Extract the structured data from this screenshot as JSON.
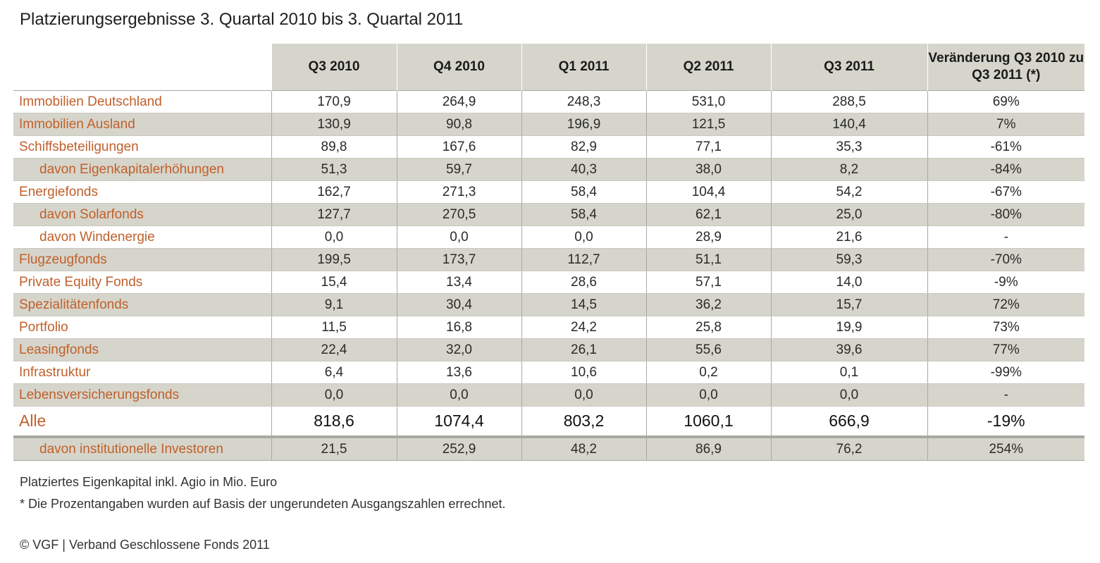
{
  "title": "Platzierungsergebnisse 3. Quartal 2010 bis 3. Quartal 2011",
  "chart_data": {
    "type": "table",
    "title": "Platzierungsergebnisse 3. Quartal 2010 bis 3. Quartal 2011",
    "columns": [
      "Q3 2010",
      "Q4 2010",
      "Q1 2011",
      "Q2 2011",
      "Q3 2011",
      "Veränderung Q3 2010 zu Q3 2011 (*)"
    ],
    "rows": [
      {
        "label": "Immobilien Deutschland",
        "values": [
          "170,9",
          "264,9",
          "248,3",
          "531,0",
          "288,5",
          "69%"
        ]
      },
      {
        "label": "Immobilien Ausland",
        "values": [
          "130,9",
          "90,8",
          "196,9",
          "121,5",
          "140,4",
          "7%"
        ]
      },
      {
        "label": "Schiffsbeteiligungen",
        "values": [
          "89,8",
          "167,6",
          "82,9",
          "77,1",
          "35,3",
          "-61%"
        ]
      },
      {
        "label": "davon Eigenkapitalerhöhungen",
        "values": [
          "51,3",
          "59,7",
          "40,3",
          "38,0",
          "8,2",
          "-84%"
        ]
      },
      {
        "label": "Energiefonds",
        "values": [
          "162,7",
          "271,3",
          "58,4",
          "104,4",
          "54,2",
          "-67%"
        ]
      },
      {
        "label": "davon Solarfonds",
        "values": [
          "127,7",
          "270,5",
          "58,4",
          "62,1",
          "25,0",
          "-80%"
        ]
      },
      {
        "label": "davon Windenergie",
        "values": [
          "0,0",
          "0,0",
          "0,0",
          "28,9",
          "21,6",
          "-"
        ]
      },
      {
        "label": "Flugzeugfonds",
        "values": [
          "199,5",
          "173,7",
          "112,7",
          "51,1",
          "59,3",
          "-70%"
        ]
      },
      {
        "label": "Private Equity Fonds",
        "values": [
          "15,4",
          "13,4",
          "28,6",
          "57,1",
          "14,0",
          "-9%"
        ]
      },
      {
        "label": "Spezialitätenfonds",
        "values": [
          "9,1",
          "30,4",
          "14,5",
          "36,2",
          "15,7",
          "72%"
        ]
      },
      {
        "label": "Portfolio",
        "values": [
          "11,5",
          "16,8",
          "24,2",
          "25,8",
          "19,9",
          "73%"
        ]
      },
      {
        "label": "Leasingfonds",
        "values": [
          "22,4",
          "32,0",
          "26,1",
          "55,6",
          "39,6",
          "77%"
        ]
      },
      {
        "label": "Infrastruktur",
        "values": [
          "6,4",
          "13,6",
          "10,6",
          "0,2",
          "0,1",
          "-99%"
        ]
      },
      {
        "label": "Lebensversicherungsfonds",
        "values": [
          "0,0",
          "0,0",
          "0,0",
          "0,0",
          "0,0",
          "-"
        ]
      }
    ],
    "total": {
      "label": "Alle",
      "values": [
        "818,6",
        "1074,4",
        "803,2",
        "1060,1",
        "666,9",
        "-19%"
      ]
    },
    "sub_total": {
      "label": "davon institutionelle Investoren",
      "values": [
        "21,5",
        "252,9",
        "48,2",
        "86,9",
        "76,2",
        "254%"
      ]
    }
  },
  "notes": {
    "unit": "Platziertes Eigenkapital inkl. Agio in Mio. Euro",
    "footnote": "* Die Prozentangaben wurden auf Basis der ungerundeten Ausgangszahlen errechnet.",
    "copyright": "© VGF | Verband Geschlossene Fonds 2011"
  },
  "colors": {
    "header_bg": "#d6d5cb",
    "label_text": "#c0602b",
    "grid_line": "#a9a9a1"
  }
}
